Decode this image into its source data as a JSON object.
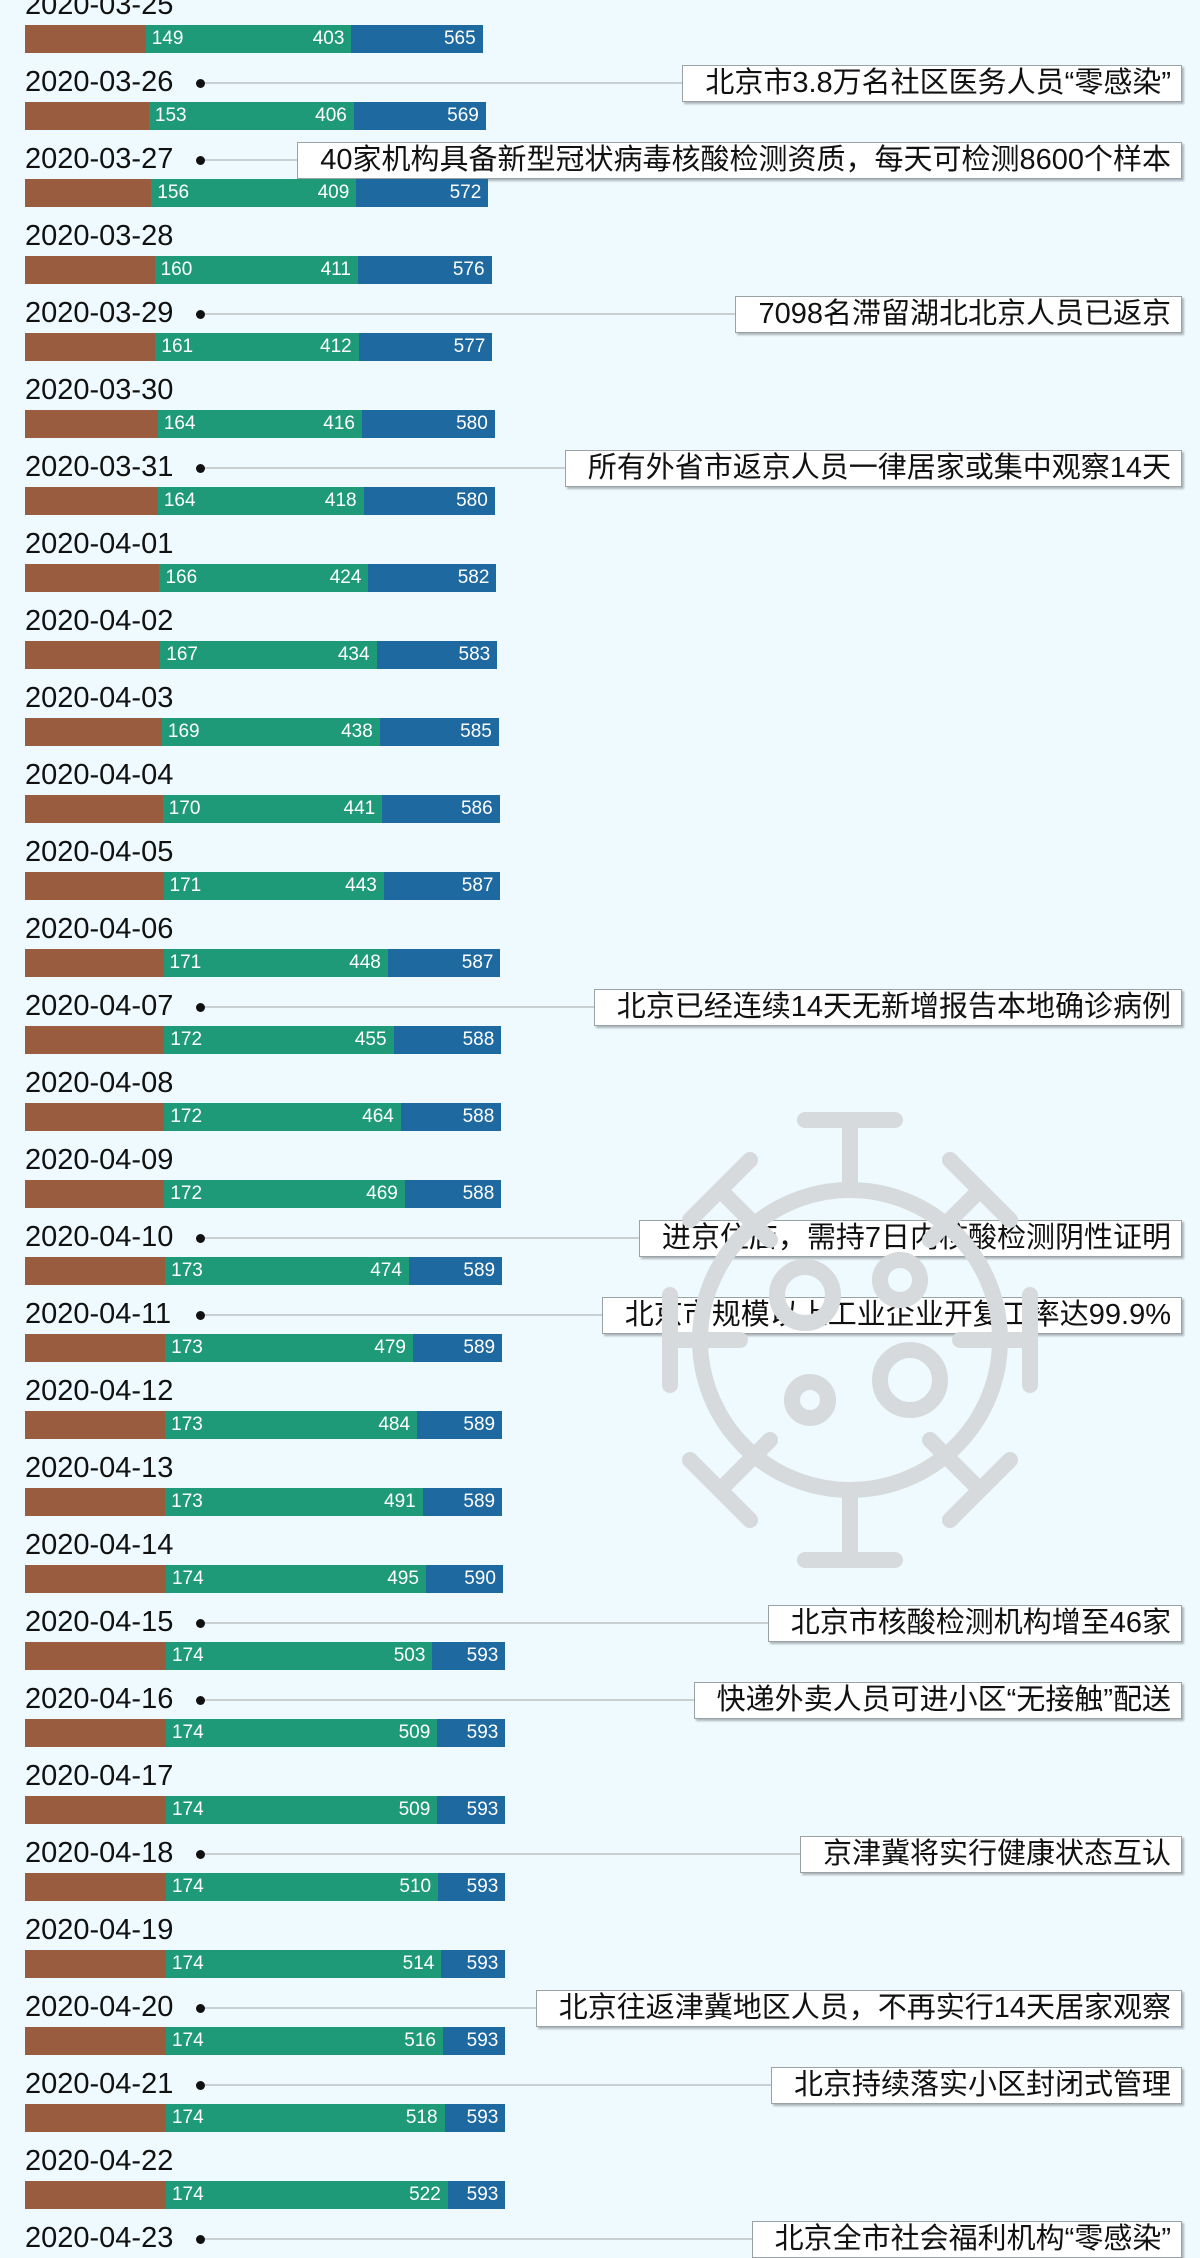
{
  "colors": {
    "background": "#eefaff",
    "base": "#9a5c3e",
    "recovered": "#1f9a78",
    "active": "#1f69a1",
    "connector": "#c8d0d4",
    "watermark": "#d6dadc"
  },
  "chart_data": {
    "type": "bar",
    "orientation": "horizontal",
    "stacked": true,
    "x_max": 600,
    "grid": false,
    "legend": "none",
    "rows": [
      {
        "date": "2020-03-25",
        "a": 149,
        "b": 403,
        "c": 565,
        "note": ""
      },
      {
        "date": "2020-03-26",
        "a": 153,
        "b": 406,
        "c": 569,
        "note": "北京市3.8万名社区医务人员“零感染”"
      },
      {
        "date": "2020-03-27",
        "a": 156,
        "b": 409,
        "c": 572,
        "note": "40家机构具备新型冠状病毒核酸检测资质，每天可检测8600个样本"
      },
      {
        "date": "2020-03-28",
        "a": 160,
        "b": 411,
        "c": 576,
        "note": ""
      },
      {
        "date": "2020-03-29",
        "a": 161,
        "b": 412,
        "c": 577,
        "note": "7098名滞留湖北北京人员已返京"
      },
      {
        "date": "2020-03-30",
        "a": 164,
        "b": 416,
        "c": 580,
        "note": ""
      },
      {
        "date": "2020-03-31",
        "a": 164,
        "b": 418,
        "c": 580,
        "note": "所有外省市返京人员一律居家或集中观察14天"
      },
      {
        "date": "2020-04-01",
        "a": 166,
        "b": 424,
        "c": 582,
        "note": ""
      },
      {
        "date": "2020-04-02",
        "a": 167,
        "b": 434,
        "c": 583,
        "note": ""
      },
      {
        "date": "2020-04-03",
        "a": 169,
        "b": 438,
        "c": 585,
        "note": ""
      },
      {
        "date": "2020-04-04",
        "a": 170,
        "b": 441,
        "c": 586,
        "note": ""
      },
      {
        "date": "2020-04-05",
        "a": 171,
        "b": 443,
        "c": 587,
        "note": ""
      },
      {
        "date": "2020-04-06",
        "a": 171,
        "b": 448,
        "c": 587,
        "note": ""
      },
      {
        "date": "2020-04-07",
        "a": 172,
        "b": 455,
        "c": 588,
        "note": "北京已经连续14天无新增报告本地确诊病例"
      },
      {
        "date": "2020-04-08",
        "a": 172,
        "b": 464,
        "c": 588,
        "note": ""
      },
      {
        "date": "2020-04-09",
        "a": 172,
        "b": 469,
        "c": 588,
        "note": ""
      },
      {
        "date": "2020-04-10",
        "a": 173,
        "b": 474,
        "c": 589,
        "note": "进京住店，需持7日内核酸检测阴性证明"
      },
      {
        "date": "2020-04-11",
        "a": 173,
        "b": 479,
        "c": 589,
        "note": "北京市规模以上工业企业开复工率达99.9%"
      },
      {
        "date": "2020-04-12",
        "a": 173,
        "b": 484,
        "c": 589,
        "note": ""
      },
      {
        "date": "2020-04-13",
        "a": 173,
        "b": 491,
        "c": 589,
        "note": ""
      },
      {
        "date": "2020-04-14",
        "a": 174,
        "b": 495,
        "c": 590,
        "note": ""
      },
      {
        "date": "2020-04-15",
        "a": 174,
        "b": 503,
        "c": 593,
        "note": "北京市核酸检测机构增至46家"
      },
      {
        "date": "2020-04-16",
        "a": 174,
        "b": 509,
        "c": 593,
        "note": "快递外卖人员可进小区“无接触”配送"
      },
      {
        "date": "2020-04-17",
        "a": 174,
        "b": 509,
        "c": 593,
        "note": ""
      },
      {
        "date": "2020-04-18",
        "a": 174,
        "b": 510,
        "c": 593,
        "note": "京津冀将实行健康状态互认"
      },
      {
        "date": "2020-04-19",
        "a": 174,
        "b": 514,
        "c": 593,
        "note": ""
      },
      {
        "date": "2020-04-20",
        "a": 174,
        "b": 516,
        "c": 593,
        "note": "北京往返津冀地区人员，不再实行14天居家观察"
      },
      {
        "date": "2020-04-21",
        "a": 174,
        "b": 518,
        "c": 593,
        "note": "北京持续落实小区封闭式管理"
      },
      {
        "date": "2020-04-22",
        "a": 174,
        "b": 522,
        "c": 593,
        "note": ""
      },
      {
        "date": "2020-04-23",
        "a": null,
        "b": null,
        "c": null,
        "note": "北京全市社会福利机构“零感染”"
      }
    ]
  }
}
